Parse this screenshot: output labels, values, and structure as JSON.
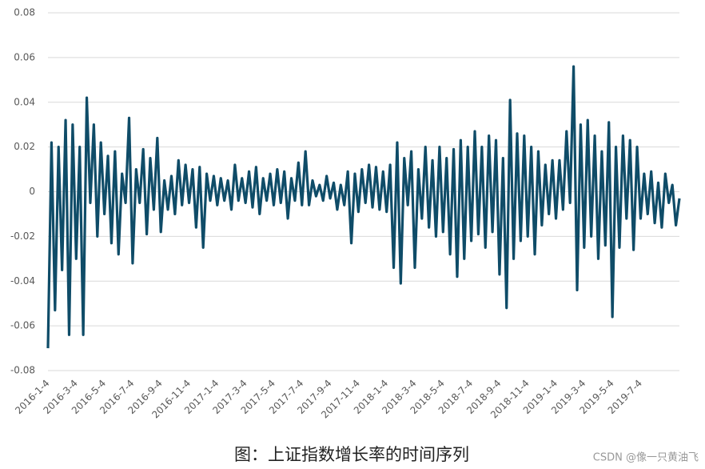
{
  "chart_data": {
    "type": "line",
    "categories": [
      "2016-1-4",
      null,
      null,
      null,
      null,
      null,
      null,
      null,
      "2016-3-4",
      null,
      null,
      null,
      null,
      null,
      null,
      null,
      "2016-5-4",
      null,
      null,
      null,
      null,
      null,
      null,
      null,
      "2016-7-4",
      null,
      null,
      null,
      null,
      null,
      null,
      null,
      "2016-9-4",
      null,
      null,
      null,
      null,
      null,
      null,
      null,
      "2016-11-4",
      null,
      null,
      null,
      null,
      null,
      null,
      null,
      "2017-1-4",
      null,
      null,
      null,
      null,
      null,
      null,
      null,
      "2017-3-4",
      null,
      null,
      null,
      null,
      null,
      null,
      null,
      "2017-5-4",
      null,
      null,
      null,
      null,
      null,
      null,
      null,
      "2017-7-4",
      null,
      null,
      null,
      null,
      null,
      null,
      null,
      "2017-9-4",
      null,
      null,
      null,
      null,
      null,
      null,
      null,
      "2017-11-4",
      null,
      null,
      null,
      null,
      null,
      null,
      null,
      "2018-1-4",
      null,
      null,
      null,
      null,
      null,
      null,
      null,
      "2018-3-4",
      null,
      null,
      null,
      null,
      null,
      null,
      null,
      "2018-5-4",
      null,
      null,
      null,
      null,
      null,
      null,
      null,
      "2018-7-4",
      null,
      null,
      null,
      null,
      null,
      null,
      null,
      "2018-9-4",
      null,
      null,
      null,
      null,
      null,
      null,
      null,
      "2018-11-4",
      null,
      null,
      null,
      null,
      null,
      null,
      null,
      "2019-1-4",
      null,
      null,
      null,
      null,
      null,
      null,
      null,
      "2019-3-4",
      null,
      null,
      null,
      null,
      null,
      null,
      null,
      "2019-5-4",
      null,
      null,
      null,
      null,
      null,
      null,
      null,
      "2019-7-4",
      null,
      null,
      null,
      null,
      null,
      null,
      null,
      null,
      null,
      null,
      null
    ],
    "values": [
      -0.07,
      0.022,
      -0.053,
      0.02,
      -0.035,
      0.032,
      -0.064,
      0.03,
      -0.03,
      0.02,
      -0.064,
      0.042,
      -0.005,
      0.03,
      -0.02,
      0.022,
      -0.01,
      0.016,
      -0.023,
      0.018,
      -0.028,
      0.008,
      -0.005,
      0.033,
      -0.032,
      0.01,
      -0.005,
      0.019,
      -0.019,
      0.015,
      -0.008,
      0.024,
      -0.018,
      0.005,
      -0.008,
      0.007,
      -0.01,
      0.014,
      -0.006,
      0.012,
      -0.005,
      0.01,
      -0.016,
      0.011,
      -0.025,
      0.008,
      -0.004,
      0.007,
      -0.006,
      0.006,
      -0.004,
      0.005,
      -0.008,
      0.012,
      -0.004,
      0.006,
      -0.005,
      0.009,
      -0.007,
      0.011,
      -0.01,
      0.006,
      -0.004,
      0.008,
      -0.006,
      0.01,
      -0.005,
      0.009,
      -0.012,
      0.006,
      -0.004,
      0.013,
      -0.006,
      0.018,
      -0.006,
      0.005,
      -0.002,
      0.003,
      -0.004,
      0.007,
      -0.003,
      0.004,
      -0.008,
      0.003,
      -0.006,
      0.009,
      -0.023,
      0.008,
      -0.009,
      0.01,
      -0.005,
      0.012,
      -0.007,
      0.011,
      -0.008,
      0.009,
      -0.009,
      0.012,
      -0.034,
      0.022,
      -0.041,
      0.015,
      -0.006,
      0.018,
      -0.034,
      0.01,
      -0.012,
      0.02,
      -0.016,
      0.014,
      -0.02,
      0.02,
      -0.018,
      0.015,
      -0.028,
      0.019,
      -0.038,
      0.023,
      -0.03,
      0.02,
      -0.022,
      0.027,
      -0.019,
      0.02,
      -0.025,
      0.025,
      -0.018,
      0.023,
      -0.037,
      0.015,
      -0.052,
      0.041,
      -0.03,
      0.026,
      -0.022,
      0.025,
      -0.02,
      0.02,
      -0.028,
      0.018,
      -0.015,
      0.012,
      -0.01,
      0.014,
      -0.012,
      0.014,
      -0.008,
      0.027,
      -0.005,
      0.056,
      -0.044,
      0.03,
      -0.025,
      0.032,
      -0.02,
      0.025,
      -0.03,
      0.018,
      -0.024,
      0.031,
      -0.056,
      0.02,
      -0.025,
      0.025,
      -0.012,
      0.023,
      -0.026,
      0.02,
      -0.012,
      0.008,
      -0.01,
      0.009,
      -0.014,
      0.004,
      -0.016,
      0.008,
      -0.005,
      0.003,
      -0.015,
      -0.003
    ],
    "color": "#0f4c68",
    "ylim": [
      -0.08,
      0.08
    ],
    "yticks": [
      -0.08,
      -0.06,
      -0.04,
      -0.02,
      0,
      0.02,
      0.04,
      0.06,
      0.08
    ],
    "grid": true,
    "caption": "图：上证指数增长率的时间序列",
    "watermark": "CSDN @像一只黄油飞"
  }
}
